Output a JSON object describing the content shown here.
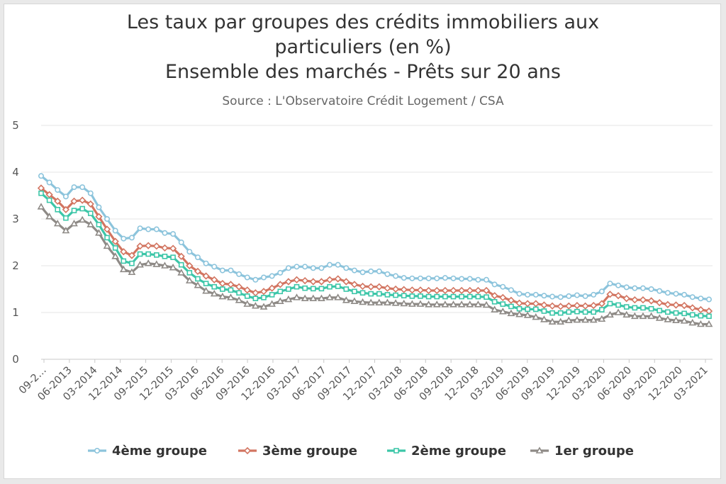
{
  "chart_data": {
    "type": "line",
    "title_lines": [
      "Les taux par groupes des crédits immobiliers aux",
      "particuliers (en %)",
      "Ensemble des marchés - Prêts sur 20 ans"
    ],
    "subtitle": "Source : L'Observatoire Crédit Logement / CSA",
    "ylim": [
      0,
      5
    ],
    "yticks": [
      "0",
      "1",
      "2",
      "3",
      "4",
      "5"
    ],
    "grid": true,
    "legend_position": "bottom",
    "x_labels": [
      "09-2…",
      "06-2013",
      "03-2014",
      "12-2014",
      "09-2015",
      "12-2015",
      "03-2016",
      "06-2016",
      "09-2016",
      "12-2016",
      "03-2017",
      "06-2017",
      "09-2017",
      "12-2017",
      "03-2018",
      "06-2018",
      "09-2018",
      "12-2018",
      "03-2019",
      "06-2019",
      "09-2019",
      "12-2019",
      "03-2020",
      "06-2020",
      "09-2020",
      "12-2020",
      "03-2021"
    ],
    "series": [
      {
        "name": "4ème groupe",
        "color": "#8cc4dc",
        "marker": "circle",
        "values": [
          3.92,
          3.78,
          3.62,
          3.48,
          3.68,
          3.68,
          3.55,
          3.25,
          3.0,
          2.75,
          2.58,
          2.6,
          2.8,
          2.78,
          2.78,
          2.7,
          2.68,
          2.5,
          2.3,
          2.18,
          2.05,
          1.98,
          1.9,
          1.9,
          1.82,
          1.75,
          1.7,
          1.75,
          1.78,
          1.85,
          1.95,
          1.98,
          1.98,
          1.95,
          1.95,
          2.02,
          2.02,
          1.95,
          1.9,
          1.86,
          1.88,
          1.88,
          1.82,
          1.78,
          1.74,
          1.73,
          1.73,
          1.73,
          1.73,
          1.74,
          1.73,
          1.72,
          1.72,
          1.7,
          1.7,
          1.6,
          1.55,
          1.48,
          1.4,
          1.38,
          1.38,
          1.36,
          1.34,
          1.33,
          1.35,
          1.37,
          1.35,
          1.38,
          1.45,
          1.62,
          1.58,
          1.54,
          1.52,
          1.52,
          1.5,
          1.46,
          1.42,
          1.4,
          1.38,
          1.33,
          1.3,
          1.28
        ]
      },
      {
        "name": "3ème groupe",
        "color": "#d27561",
        "marker": "diamond",
        "values": [
          3.66,
          3.52,
          3.38,
          3.2,
          3.38,
          3.4,
          3.32,
          3.05,
          2.78,
          2.52,
          2.3,
          2.22,
          2.42,
          2.43,
          2.42,
          2.38,
          2.37,
          2.2,
          2.0,
          1.88,
          1.78,
          1.7,
          1.62,
          1.6,
          1.55,
          1.48,
          1.42,
          1.45,
          1.52,
          1.6,
          1.66,
          1.7,
          1.68,
          1.66,
          1.66,
          1.7,
          1.72,
          1.66,
          1.6,
          1.56,
          1.55,
          1.55,
          1.52,
          1.5,
          1.49,
          1.48,
          1.48,
          1.47,
          1.47,
          1.47,
          1.47,
          1.47,
          1.47,
          1.47,
          1.47,
          1.36,
          1.32,
          1.26,
          1.2,
          1.19,
          1.19,
          1.16,
          1.14,
          1.13,
          1.14,
          1.15,
          1.14,
          1.15,
          1.19,
          1.39,
          1.36,
          1.3,
          1.27,
          1.27,
          1.25,
          1.21,
          1.17,
          1.16,
          1.15,
          1.1,
          1.06,
          1.03
        ]
      },
      {
        "name": "2ème groupe",
        "color": "#3cc6a8",
        "marker": "square",
        "values": [
          3.55,
          3.4,
          3.2,
          3.02,
          3.18,
          3.22,
          3.12,
          2.88,
          2.6,
          2.38,
          2.1,
          2.05,
          2.25,
          2.25,
          2.23,
          2.2,
          2.18,
          2.02,
          1.85,
          1.72,
          1.62,
          1.55,
          1.5,
          1.48,
          1.42,
          1.35,
          1.3,
          1.32,
          1.38,
          1.45,
          1.5,
          1.55,
          1.52,
          1.51,
          1.51,
          1.55,
          1.56,
          1.5,
          1.45,
          1.42,
          1.4,
          1.4,
          1.38,
          1.37,
          1.36,
          1.35,
          1.35,
          1.34,
          1.34,
          1.34,
          1.34,
          1.34,
          1.34,
          1.34,
          1.33,
          1.23,
          1.18,
          1.13,
          1.08,
          1.07,
          1.07,
          1.03,
          0.99,
          0.99,
          1.01,
          1.02,
          1.01,
          1.01,
          1.06,
          1.19,
          1.16,
          1.12,
          1.1,
          1.1,
          1.08,
          1.04,
          1.01,
          0.99,
          0.98,
          0.95,
          0.93,
          0.92
        ]
      },
      {
        "name": "1er groupe",
        "color": "#8e8a86",
        "marker": "triangle",
        "values": [
          3.26,
          3.05,
          2.9,
          2.75,
          2.9,
          2.98,
          2.88,
          2.7,
          2.42,
          2.2,
          1.92,
          1.86,
          2.02,
          2.05,
          2.03,
          2.0,
          1.96,
          1.85,
          1.68,
          1.58,
          1.46,
          1.4,
          1.34,
          1.32,
          1.26,
          1.18,
          1.14,
          1.12,
          1.18,
          1.24,
          1.28,
          1.32,
          1.3,
          1.3,
          1.3,
          1.32,
          1.32,
          1.26,
          1.24,
          1.22,
          1.21,
          1.21,
          1.21,
          1.2,
          1.19,
          1.18,
          1.18,
          1.17,
          1.17,
          1.17,
          1.17,
          1.17,
          1.17,
          1.17,
          1.16,
          1.06,
          1.02,
          0.98,
          0.96,
          0.94,
          0.9,
          0.85,
          0.8,
          0.8,
          0.83,
          0.84,
          0.84,
          0.84,
          0.86,
          0.95,
          1.0,
          0.95,
          0.92,
          0.92,
          0.92,
          0.88,
          0.85,
          0.83,
          0.82,
          0.78,
          0.75,
          0.75
        ]
      }
    ]
  }
}
